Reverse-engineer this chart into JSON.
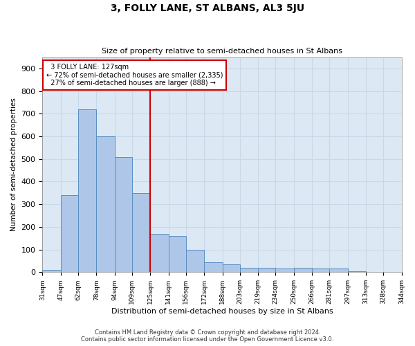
{
  "title": "3, FOLLY LANE, ST ALBANS, AL3 5JU",
  "subtitle": "Size of property relative to semi-detached houses in St Albans",
  "xlabel": "Distribution of semi-detached houses by size in St Albans",
  "ylabel": "Number of semi-detached properties",
  "footer_line1": "Contains HM Land Registry data © Crown copyright and database right 2024.",
  "footer_line2": "Contains public sector information licensed under the Open Government Licence v3.0.",
  "property_label": "3 FOLLY LANE: 127sqm",
  "pct_smaller": 72,
  "n_smaller": 2335,
  "pct_larger": 27,
  "n_larger": 888,
  "bin_edges": [
    31,
    47,
    62,
    78,
    94,
    109,
    125,
    141,
    156,
    172,
    188,
    203,
    219,
    234,
    250,
    266,
    281,
    297,
    313,
    328,
    344
  ],
  "bar_heights": [
    10,
    340,
    720,
    600,
    510,
    350,
    170,
    160,
    100,
    45,
    35,
    20,
    20,
    15,
    20,
    15,
    15,
    5,
    2,
    1
  ],
  "bar_color": "#aec6e8",
  "bar_edge_color": "#5a8fc2",
  "grid_color": "#c8d8e8",
  "background_color": "#dce9f5",
  "vline_color": "#cc0000",
  "vline_x": 125,
  "annotation_box_color": "#ffffff",
  "annotation_box_edge": "#cc0000",
  "ylim": [
    0,
    950
  ],
  "yticks": [
    0,
    100,
    200,
    300,
    400,
    500,
    600,
    700,
    800,
    900
  ]
}
